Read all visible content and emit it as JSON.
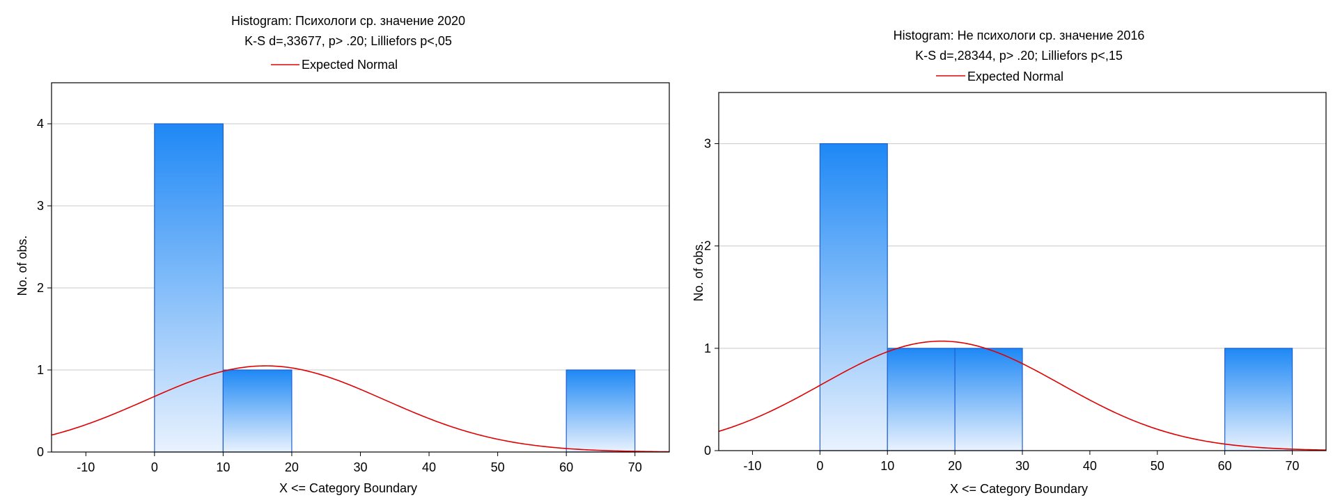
{
  "chart_data": [
    {
      "type": "bar",
      "title": "Histogram: Психологи ср. значение 2020",
      "subtitle": "K-S d=,33677, p> .20; Lilliefors p<,05",
      "legend": [
        {
          "name": "Expected Normal",
          "color": "#e00000",
          "kind": "line"
        }
      ],
      "legend_placement": "top-center",
      "xlabel": "X <= Category Boundary",
      "ylabel": "No. of obs.",
      "xlim": [
        -15,
        75
      ],
      "ylim": [
        0,
        4.5
      ],
      "xticks": [
        -10,
        0,
        10,
        20,
        30,
        40,
        50,
        60,
        70
      ],
      "yticks": [
        0,
        1,
        2,
        3,
        4
      ],
      "grid": "horizontal",
      "bins": [
        {
          "from": 0,
          "to": 10,
          "count": 4
        },
        {
          "from": 10,
          "to": 20,
          "count": 1
        },
        {
          "from": 60,
          "to": 70,
          "count": 1
        }
      ],
      "expected_normal": {
        "mean": 16.2,
        "sd": 17.3,
        "peak": 1.05
      },
      "colors": {
        "bar_top": "#1e88f5",
        "bar_bottom": "#e9f2fe",
        "bar_stroke": "#1f5fd0",
        "curve": "#e00000",
        "grid": "#c8c8c8"
      }
    },
    {
      "type": "bar",
      "title": "Histogram: Не психологи ср. значение 2016",
      "subtitle": "K-S d=,28344, p> .20; Lilliefors p<,15",
      "legend": [
        {
          "name": "Expected Normal",
          "color": "#e00000",
          "kind": "line"
        }
      ],
      "legend_placement": "top-center",
      "xlabel": "X <= Category Boundary",
      "ylabel": "No. of obs.",
      "xlim": [
        -15,
        75
      ],
      "ylim": [
        0,
        3.5
      ],
      "xticks": [
        -10,
        0,
        10,
        20,
        30,
        40,
        50,
        60,
        70
      ],
      "yticks": [
        0,
        1,
        2,
        3
      ],
      "grid": "horizontal",
      "bins": [
        {
          "from": 0,
          "to": 10,
          "count": 3
        },
        {
          "from": 10,
          "to": 20,
          "count": 1
        },
        {
          "from": 20,
          "to": 30,
          "count": 1
        },
        {
          "from": 60,
          "to": 70,
          "count": 1
        }
      ],
      "expected_normal": {
        "mean": 18.0,
        "sd": 17.7,
        "peak": 1.07
      },
      "colors": {
        "bar_top": "#1e88f5",
        "bar_bottom": "#e9f2fe",
        "bar_stroke": "#1f5fd0",
        "curve": "#e00000",
        "grid": "#c8c8c8"
      }
    }
  ]
}
